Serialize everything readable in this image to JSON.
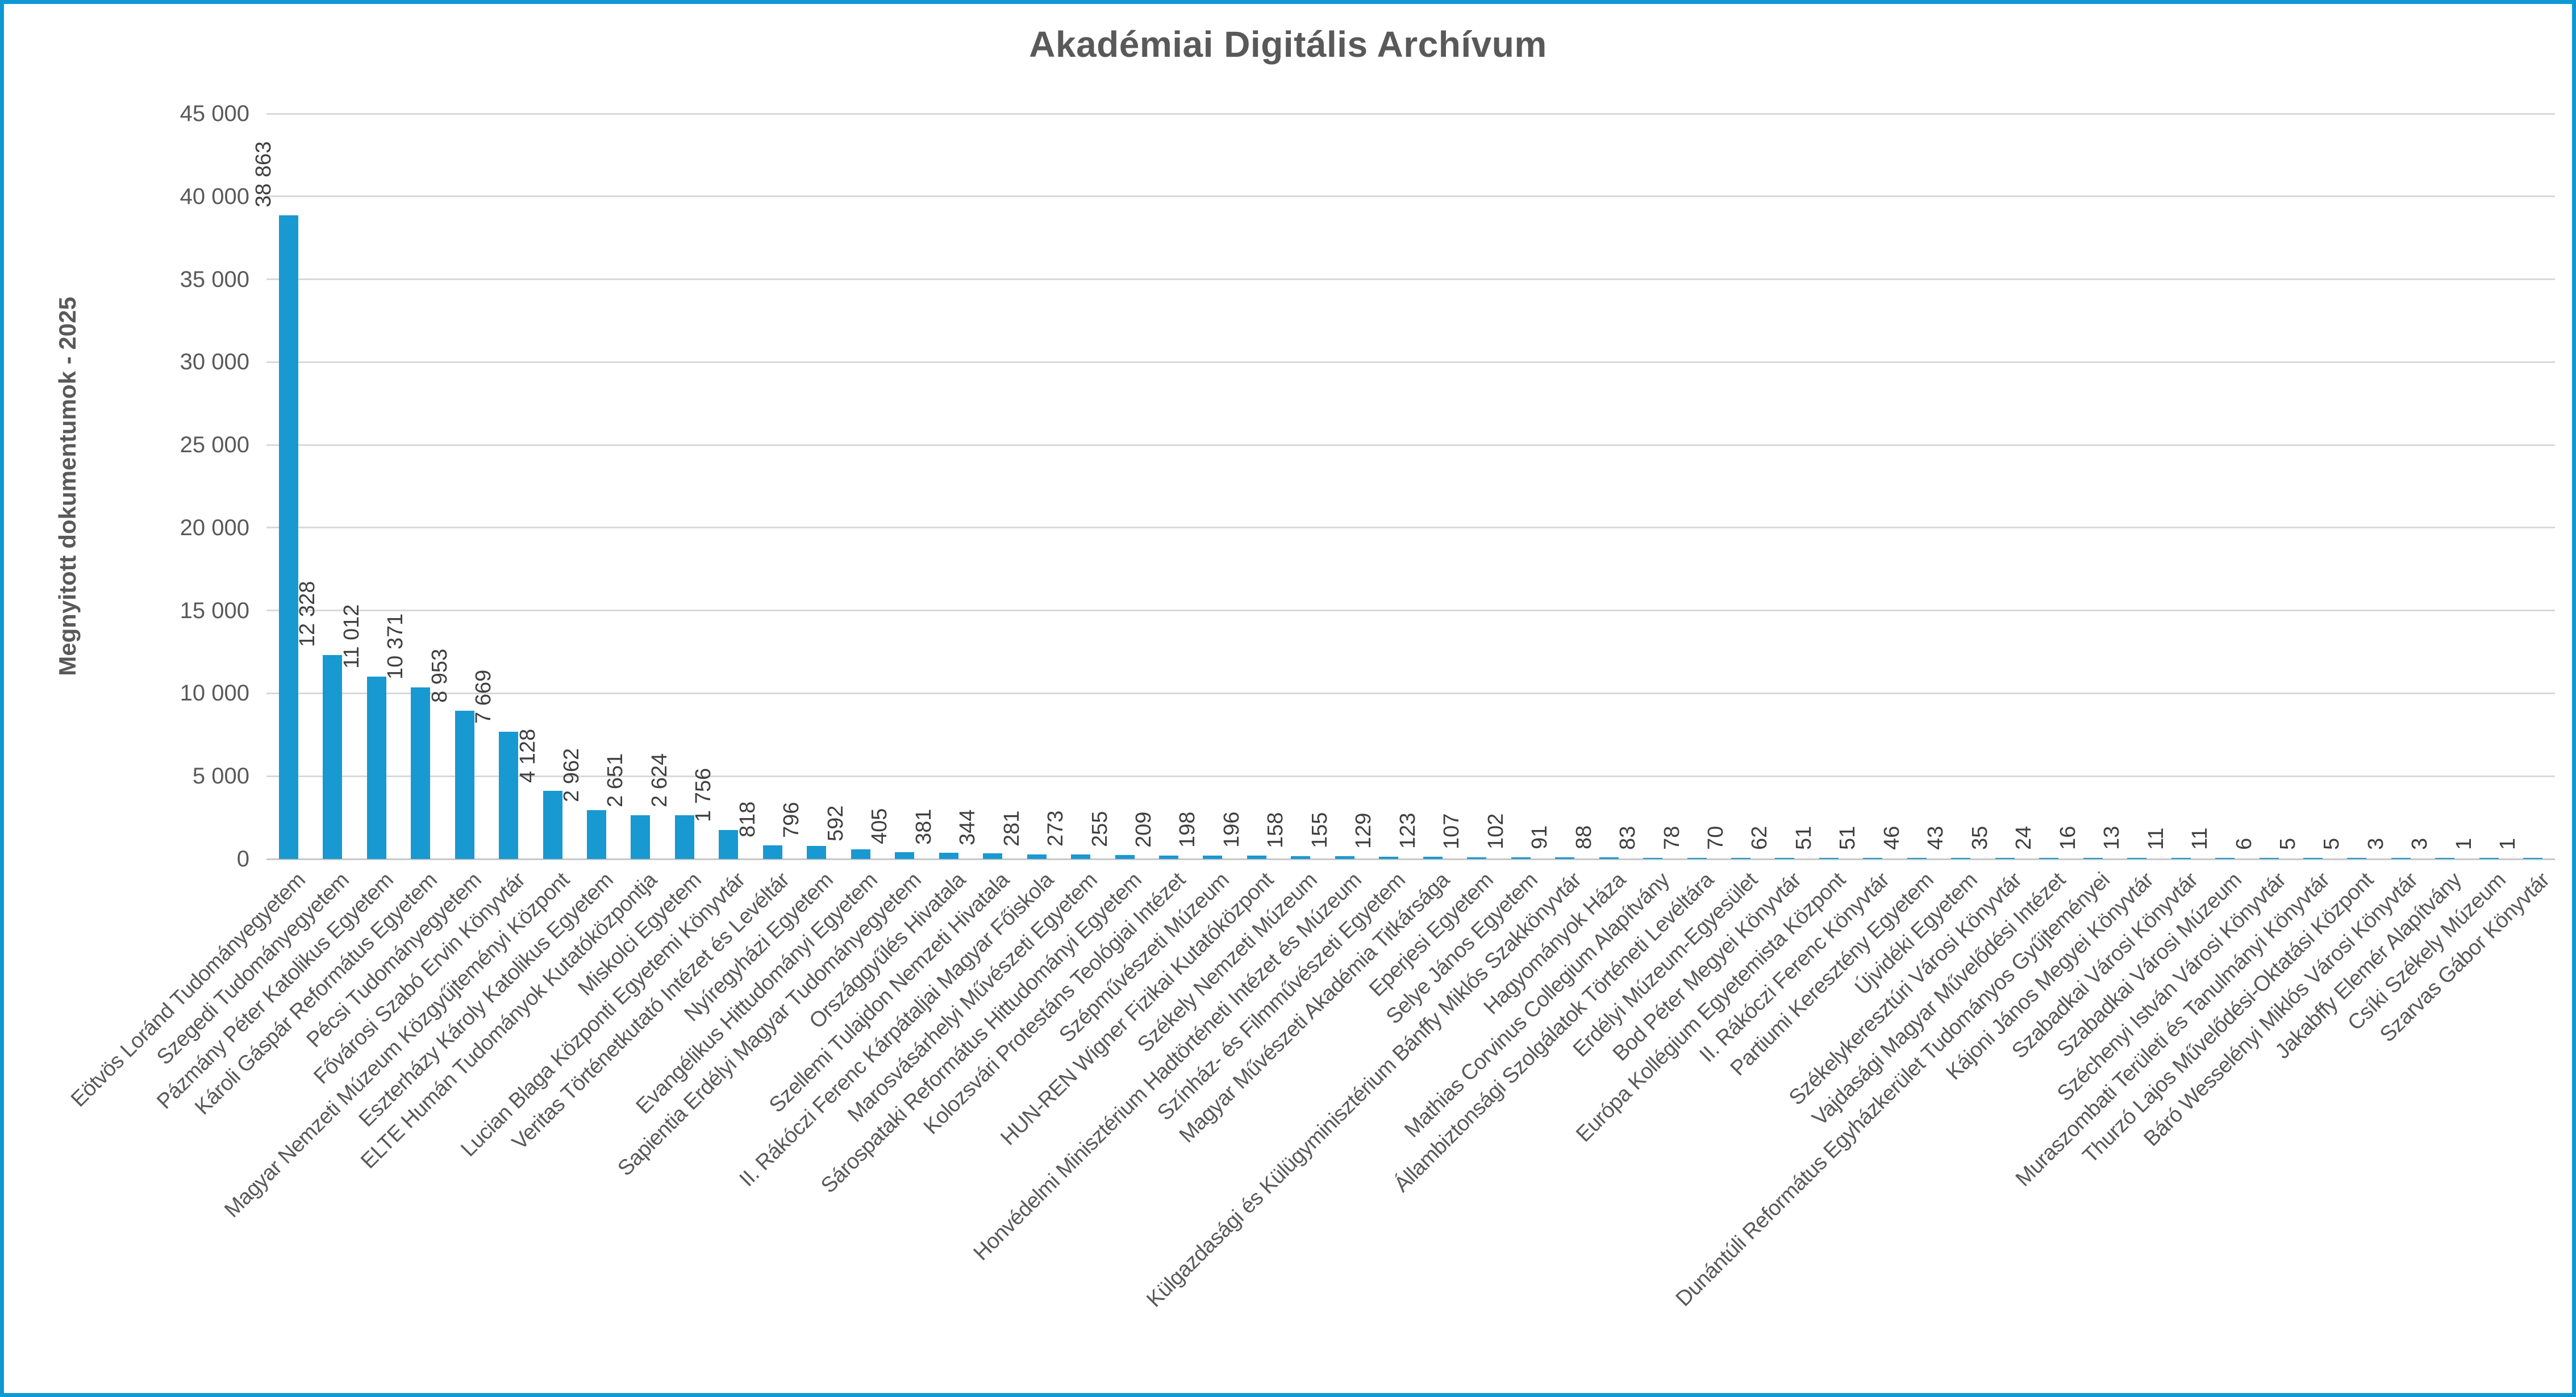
{
  "title": "Akadémiai Digitális Archívum",
  "colors": {
    "bar": "#1899D2",
    "frame_border": "#0E99D3",
    "title_text": "#595959",
    "axis_text": "#595959",
    "value_label_text": "#3F3F3F",
    "gridline": "#D9D9D9"
  },
  "chart_data": {
    "type": "bar",
    "title": "Akadémiai Digitális Archívum",
    "xlabel": "",
    "ylabel": "Megnyitott dokumentumok - 2025",
    "ylim": [
      0,
      45000
    ],
    "ytick_step": 5000,
    "grid": true,
    "legend": false,
    "bar_color": "#1899D2",
    "y_tick_labels": [
      "0",
      "5 000",
      "10 000",
      "15 000",
      "20 000",
      "25 000",
      "30 000",
      "35 000",
      "40 000",
      "45 000"
    ],
    "categories": [
      "Eötvös Loránd Tudományegyetem",
      "Szegedi Tudományegyetem",
      "Pázmány Péter Katolikus Egyetem",
      "Károli Gáspár Református Egyetem",
      "Pécsi Tudományegyetem",
      "Fővárosi Szabó Ervin Könyvtár",
      "Magyar Nemzeti Múzeum Közgyűjteményi Központ",
      "Eszterházy Károly Katolikus Egyetem",
      "ELTE Humán Tudományok Kutatóközpontja",
      "Miskolci Egyetem",
      "Lucian Blaga Központi Egyetemi Könyvtár",
      "Veritas Történetkutató Intézet és Levéltár",
      "Nyíregyházi Egyetem",
      "Evangélikus Hittudományi Egyetem",
      "Sapientia Erdélyi Magyar Tudományegyetem",
      "Országgyűlés Hivatala",
      "Szellemi Tulajdon Nemzeti Hivatala",
      "II. Rákóczi Ferenc Kárpátaljai Magyar Főiskola",
      "Marosvásárhelyi Művészeti Egyetem",
      "Sárospataki Református Hittudományi Egyetem",
      "Kolozsvári Protestáns Teológiai Intézet",
      "Szépművészeti Múzeum",
      "HUN-REN Wigner Fizikai Kutatóközpont",
      "Székely Nemzeti Múzeum",
      "Honvédelmi Minisztérium Hadtörténeti Intézet és Múzeum",
      "Színház- és Filmművészeti Egyetem",
      "Magyar Művészeti Akadémia Titkársága",
      "Eperjesi Egyetem",
      "Selye János Egyetem",
      "Külgazdasági és Külügyminisztérium Bánffy Miklós Szakkönyvtár",
      "Hagyományok Háza",
      "Mathias Corvinus Collegium Alapítvány",
      "Állambiztonsági Szolgálatok Történeti Levéltára",
      "Erdélyi Múzeum-Egyesület",
      "Bod Péter Megyei Könyvtár",
      "Európa Kollégium Egyetemista Központ",
      "II. Rákóczi Ferenc Könyvtár",
      "Partiumi Keresztény Egyetem",
      "Újvidéki Egyetem",
      "Székelykeresztúri Városi Könyvtár",
      "Vajdasági Magyar Művelődési Intézet",
      "Dunántúli Református Egyházkerület Tudományos Gyűjteményei",
      "Kájoni János Megyei Könyvtár",
      "Szabadkai Városi Könyvtár",
      "Szabadkai Városi Múzeum",
      "Széchenyi István Városi Könyvtár",
      "Muraszombati Területi és Tanulmányi Könyvtár",
      "Thurzó Lajos Művelődési-Oktatási Központ",
      "Báró Wesselényi Miklós Városi Könyvtár",
      "Jakabffy Elemér Alapítvány",
      "Csíki Székely Múzeum",
      "Szarvas Gábor Könyvtár"
    ],
    "values": [
      38863,
      12328,
      11012,
      10371,
      8953,
      7669,
      4128,
      2962,
      2651,
      2624,
      1756,
      818,
      796,
      592,
      405,
      381,
      344,
      281,
      273,
      255,
      209,
      198,
      196,
      158,
      155,
      129,
      123,
      107,
      102,
      91,
      88,
      83,
      78,
      70,
      62,
      51,
      51,
      46,
      43,
      35,
      24,
      16,
      13,
      11,
      11,
      6,
      5,
      5,
      3,
      3,
      1,
      1
    ],
    "value_labels": [
      "38 863",
      "12 328",
      "11 012",
      "10 371",
      "8 953",
      "7 669",
      "4 128",
      "2 962",
      "2 651",
      "2 624",
      "1 756",
      "818",
      "796",
      "592",
      "405",
      "381",
      "344",
      "281",
      "273",
      "255",
      "209",
      "198",
      "196",
      "158",
      "155",
      "129",
      "123",
      "107",
      "102",
      "91",
      "88",
      "83",
      "78",
      "70",
      "62",
      "51",
      "51",
      "46",
      "43",
      "35",
      "24",
      "16",
      "13",
      "11",
      "11",
      "6",
      "5",
      "5",
      "3",
      "3",
      "1",
      "1"
    ]
  }
}
